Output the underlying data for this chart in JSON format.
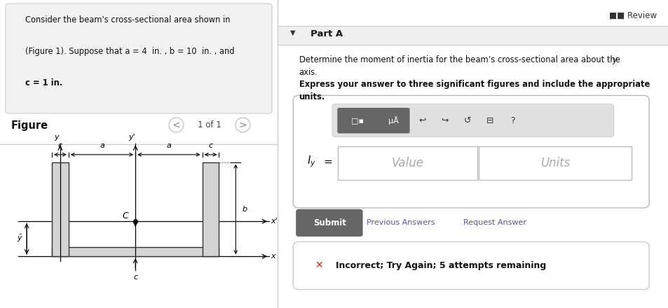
{
  "bg_color": "#ffffff",
  "top_box_bg": "#f2f2f2",
  "top_box_edge": "#cccccc",
  "text1": "Consider the beam's cross-sectional area shown in",
  "text2": "(Figure 1). Suppose that a = 4  in. , b = 10  in. , and",
  "text3": "c = 1 in.",
  "figure_label": "Figure",
  "nav_text": "1 of 1",
  "review_text": "■■ Review",
  "part_label": "Part A",
  "desc1": "Determine the moment of inertia for the beam’s cross-sectional area about the ",
  "desc1_italic": "y",
  "desc2": "axis.",
  "bold_text1": "Express your answer to three significant figures and include the appropriate",
  "bold_text2": "units.",
  "iy_label": "I",
  "iy_sub": "y",
  "iy_eq": " =",
  "value_text": "Value",
  "units_text": "Units",
  "submit_text": "Submit",
  "prev_ans": "Previous Answers",
  "req_ans": "Request Answer",
  "incorrect_text": "Incorrect; Try Again; 5 attempts remaining",
  "shape_fill_light": "#d4d4d4",
  "shape_fill_lighter": "#e0e0e0",
  "shape_edge": "#333333",
  "divider_color": "#cccccc",
  "part_bg": "#f0f0f0",
  "input_area_edge": "#bbbbbb",
  "toolbar_bg": "#e0e0e0",
  "toolbar_edge": "#cccccc",
  "dark_btn_bg": "#666666",
  "submit_bg": "#666666",
  "incorrect_edge": "#cccccc",
  "link_color": "#555599",
  "x_red": "#cc2222"
}
